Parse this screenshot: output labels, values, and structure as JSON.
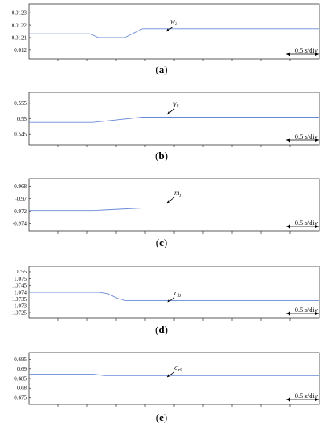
{
  "scale_label": "0.5 s/div",
  "chart_data": [
    {
      "type": "line",
      "panel_label": "(a)",
      "variable": "w",
      "variable_subscript": "3",
      "yticks": [
        0.0123,
        0.0122,
        0.0121,
        0.012
      ],
      "ylim": [
        0.01193,
        0.01237
      ],
      "xlim": [
        0,
        10
      ],
      "grid": false,
      "series": [
        {
          "color": "#6a8bd8",
          "x": [
            0,
            2.1,
            2.4,
            3.0,
            3.3,
            3.9,
            10
          ],
          "y": [
            0.01213,
            0.01213,
            0.0121,
            0.0121,
            0.0121,
            0.01217,
            0.01217
          ]
        }
      ]
    },
    {
      "type": "line",
      "panel_label": "(b)",
      "variable": "γ",
      "variable_subscript": "3",
      "yticks": [
        0.555,
        0.55,
        0.545
      ],
      "ylim": [
        0.5415,
        0.5585
      ],
      "xlim": [
        0,
        10
      ],
      "grid": false,
      "series": [
        {
          "color": "#6a8bd8",
          "x": [
            0,
            2.2,
            3.9,
            10
          ],
          "y": [
            0.5488,
            0.5488,
            0.5505,
            0.5505
          ]
        }
      ]
    },
    {
      "type": "line",
      "panel_label": "(c)",
      "variable": "m",
      "variable_subscript": "3",
      "yticks": [
        -0.968,
        -0.97,
        -0.972,
        -0.974
      ],
      "ylim": [
        -0.9752,
        -0.9668
      ],
      "xlim": [
        0,
        10
      ],
      "grid": false,
      "series": [
        {
          "color": "#6a8bd8",
          "x": [
            0,
            2.2,
            3.9,
            10
          ],
          "y": [
            -0.9719,
            -0.9719,
            -0.9715,
            -0.9715
          ]
        }
      ]
    },
    {
      "type": "line",
      "panel_label": "(d)",
      "variable": "σ",
      "variable_subscript": "l3",
      "yticks": [
        1.0755,
        1.075,
        1.0745,
        1.074,
        1.0735,
        1.073,
        1.0725
      ],
      "ylim": [
        1.0721,
        1.0759
      ],
      "xlim": [
        0,
        10
      ],
      "grid": false,
      "series": [
        {
          "color": "#6a8bd8",
          "x": [
            0,
            2.4,
            2.7,
            3.0,
            3.3,
            10
          ],
          "y": [
            1.074,
            1.074,
            1.0739,
            1.0736,
            1.0734,
            1.0734
          ]
        }
      ]
    },
    {
      "type": "line",
      "panel_label": "(e)",
      "variable": "σ",
      "variable_subscript": "r3",
      "yticks": [
        0.695,
        0.69,
        0.685,
        0.68,
        0.675
      ],
      "ylim": [
        0.6715,
        0.6985
      ],
      "xlim": [
        0,
        10
      ],
      "grid": false,
      "series": [
        {
          "color": "#6a8bd8",
          "x": [
            0,
            2.2,
            2.6,
            10
          ],
          "y": [
            0.6873,
            0.6873,
            0.6865,
            0.6865
          ]
        }
      ]
    }
  ]
}
